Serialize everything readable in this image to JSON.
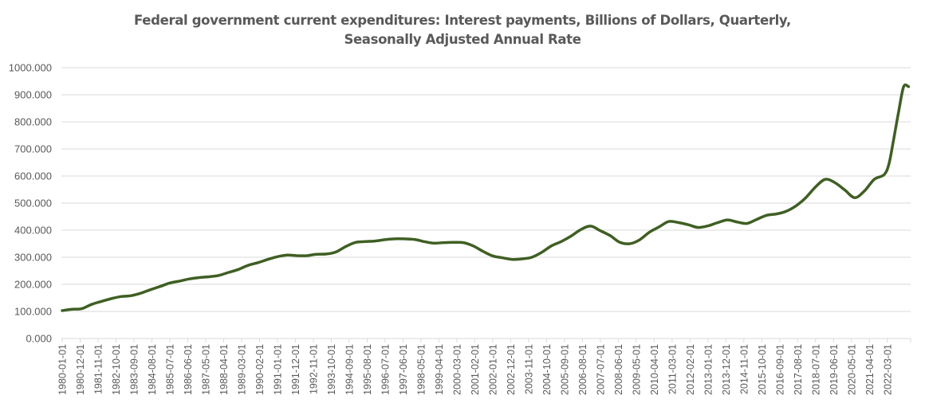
{
  "chart_data": {
    "type": "line",
    "title": "Federal government current expenditures: Interest payments, Billions of Dollars, Quarterly, Seasonally Adjusted Annual Rate",
    "title_lines": [
      "Federal government current expenditures: Interest payments, Billions of Dollars, Quarterly,",
      "Seasonally Adjusted Annual Rate"
    ],
    "xlabel": "",
    "ylabel": "",
    "ylim": [
      0,
      1000
    ],
    "yticks": [
      "0.000",
      "100.000",
      "200.000",
      "300.000",
      "400.000",
      "500.000",
      "600.000",
      "700.000",
      "800.000",
      "900.000",
      "1000.000"
    ],
    "xtick_labels": [
      "1980-01-01",
      "1980-12-01",
      "1981-11-01",
      "1982-10-01",
      "1983-09-01",
      "1984-08-01",
      "1985-07-01",
      "1986-06-01",
      "1987-05-01",
      "1988-04-01",
      "1989-03-01",
      "1990-02-01",
      "1991-01-01",
      "1991-12-01",
      "1992-11-01",
      "1993-10-01",
      "1994-09-01",
      "1995-08-01",
      "1996-07-01",
      "1997-06-01",
      "1998-05-01",
      "1999-04-01",
      "2000-03-01",
      "2001-02-01",
      "2002-01-01",
      "2002-12-01",
      "2003-11-01",
      "2004-10-01",
      "2005-09-01",
      "2006-08-01",
      "2007-07-01",
      "2008-06-01",
      "2009-05-01",
      "2010-04-01",
      "2011-03-01",
      "2012-02-01",
      "2013-01-01",
      "2013-12-01",
      "2014-11-01",
      "2015-10-01",
      "2016-09-01",
      "2017-08-01",
      "2018-07-01",
      "2019-06-01",
      "2020-05-01",
      "2021-04-01",
      "2022-03-01"
    ],
    "grid": true,
    "legend": "none",
    "series": [
      {
        "name": "Interest payments",
        "color": "#3f5f23",
        "x": [
          "1980-01-01",
          "1980-07-01",
          "1981-01-01",
          "1981-07-01",
          "1982-01-01",
          "1982-07-01",
          "1983-01-01",
          "1983-07-01",
          "1984-01-01",
          "1984-07-01",
          "1985-01-01",
          "1985-07-01",
          "1986-01-01",
          "1986-07-01",
          "1987-01-01",
          "1987-07-01",
          "1988-01-01",
          "1988-07-01",
          "1989-01-01",
          "1989-07-01",
          "1990-01-01",
          "1990-07-01",
          "1991-01-01",
          "1991-07-01",
          "1992-01-01",
          "1992-07-01",
          "1993-01-01",
          "1993-07-01",
          "1994-01-01",
          "1994-07-01",
          "1995-01-01",
          "1995-07-01",
          "1996-01-01",
          "1996-07-01",
          "1997-01-01",
          "1997-07-01",
          "1998-01-01",
          "1998-07-01",
          "1999-01-01",
          "1999-07-01",
          "2000-01-01",
          "2000-07-01",
          "2001-01-01",
          "2001-07-01",
          "2002-01-01",
          "2002-07-01",
          "2003-01-01",
          "2003-07-01",
          "2004-01-01",
          "2004-07-01",
          "2005-01-01",
          "2005-07-01",
          "2006-01-01",
          "2006-07-01",
          "2007-01-01",
          "2007-07-01",
          "2008-01-01",
          "2008-07-01",
          "2009-01-01",
          "2009-07-01",
          "2010-01-01",
          "2010-07-01",
          "2011-01-01",
          "2011-07-01",
          "2012-01-01",
          "2012-07-01",
          "2013-01-01",
          "2013-07-01",
          "2014-01-01",
          "2014-07-01",
          "2015-01-01",
          "2015-07-01",
          "2016-01-01",
          "2016-07-01",
          "2017-01-01",
          "2017-07-01",
          "2018-01-01",
          "2018-07-01",
          "2019-01-01",
          "2019-07-01",
          "2020-01-01",
          "2020-07-01",
          "2021-01-01",
          "2021-07-01",
          "2022-01-01",
          "2022-04-01",
          "2022-07-01",
          "2022-10-01",
          "2023-01-01",
          "2023-04-01"
        ],
        "values": [
          103,
          108,
          110,
          126,
          137,
          147,
          155,
          158,
          167,
          180,
          192,
          205,
          212,
          220,
          225,
          228,
          233,
          244,
          255,
          270,
          280,
          292,
          302,
          308,
          306,
          306,
          311,
          312,
          320,
          340,
          355,
          358,
          360,
          365,
          368,
          368,
          366,
          358,
          352,
          354,
          355,
          354,
          342,
          322,
          305,
          298,
          292,
          294,
          300,
          318,
          342,
          358,
          378,
          402,
          415,
          398,
          380,
          355,
          350,
          364,
          392,
          412,
          432,
          428,
          420,
          410,
          416,
          428,
          438,
          430,
          425,
          440,
          455,
          460,
          470,
          490,
          520,
          560,
          588,
          575,
          548,
          520,
          545,
          588,
          605,
          645,
          740,
          840,
          930,
          930
        ]
      }
    ]
  }
}
